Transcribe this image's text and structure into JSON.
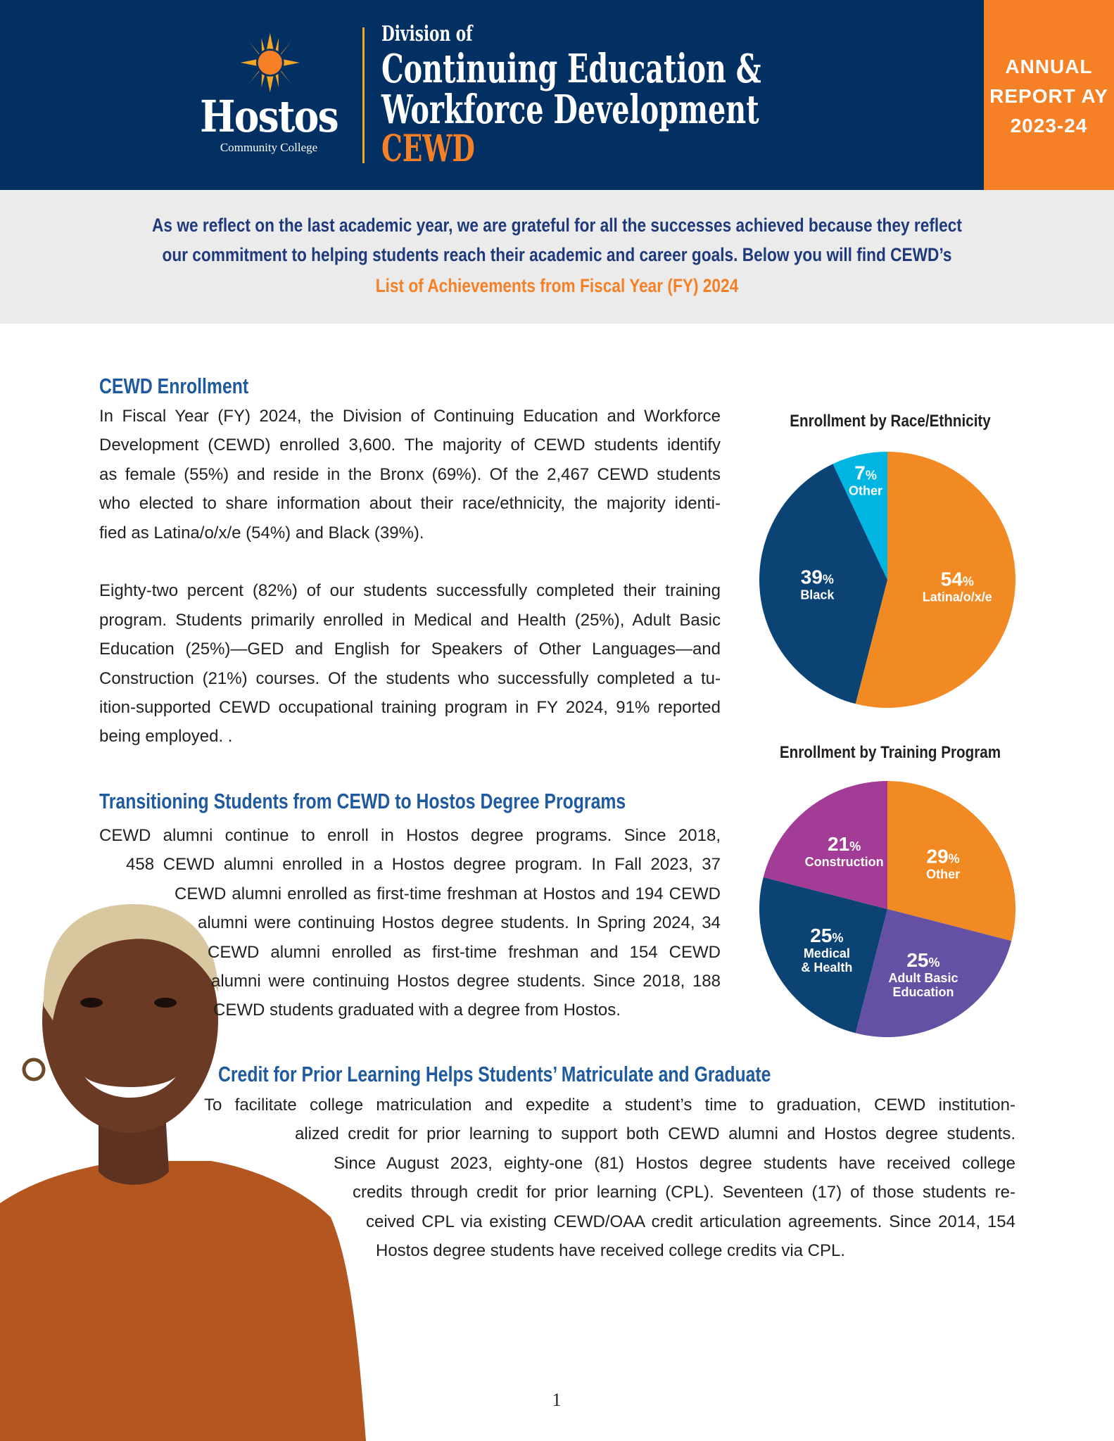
{
  "header": {
    "logo_word": "Hostos",
    "logo_sub": "Community College",
    "division_of": "Division of",
    "title_line1": "Continuing Education &",
    "title_line2": "Workforce Development",
    "acronym": "CEWD",
    "report": [
      "ANNUAL",
      "REPORT AY",
      "2023-24"
    ],
    "colors": {
      "navy": "#033063",
      "orange": "#f58025",
      "gold": "#f5a623"
    }
  },
  "intro": {
    "lines": [
      "As we reflect on the last academic year, we are grateful for all the successes achieved because they reflect",
      "our commitment to helping students reach their academic and career goals. Below you will find CEWD’s",
      "List of Achievements from Fiscal Year (FY) 2024"
    ]
  },
  "sections": [
    {
      "heading": "CEWD Enrollment",
      "lines": [
        "In Fiscal Year (FY) 2024, the Division of Continuing Education and Workforce",
        "Development (CEWD) enrolled 3,600. The majority of CEWD students identify",
        "as female (55%) and reside in the Bronx (69%). Of the 2,467 CEWD students",
        "who elected to share information about their race/ethnicity, the majority identi-",
        "fied as Latina/o/x/e (54%) and Black (39%).",
        "Eighty-two percent (82%) of our students successfully completed their training",
        "program. Students primarily enrolled in Medical and Health (25%), Adult Basic",
        "Education (25%)—GED and English for Speakers of Other Languages—and",
        "Construction (21%) courses. Of the students who successfully completed a tu-",
        "ition-supported CEWD occupational training program in FY 2024, 91% reported",
        "being employed. ."
      ]
    },
    {
      "heading": "Transitioning Students from CEWD to Hostos Degree Programs",
      "lines": [
        "CEWD alumni continue to enroll in Hostos degree programs. Since 2018,",
        "458 CEWD alumni enrolled in a Hostos degree program. In Fall 2023, 37",
        "CEWD alumni enrolled as first-time freshman at Hostos and 194 CEWD",
        "alumni were continuing Hostos degree students. In Spring 2024, 34",
        "CEWD alumni enrolled as first-time freshman and 154 CEWD",
        "alumni were continuing Hostos degree students. Since 2018, 188",
        "CEWD students graduated with a degree from Hostos."
      ]
    },
    {
      "heading": "Credit for Prior Learning Helps Students’ Matriculate and Graduate",
      "lines": [
        "To facilitate college matriculation and expedite a student’s time to graduation, CEWD institution-",
        "alized credit for prior learning to support both CEWD alumni and Hostos degree students.",
        "Since August 2023, eighty-one (81) Hostos degree students have received college",
        "credits through credit for prior learning (CPL).  Seventeen (17) of those students re-",
        "ceived CPL via existing CEWD/OAA credit articulation agreements. Since 2014, 154",
        "Hostos degree students have  received college credits via CPL."
      ]
    }
  ],
  "chart_data": [
    {
      "type": "pie",
      "title": "Enrollment by Race/Ethnicity",
      "categories": [
        "Latina/o/x/e",
        "Black",
        "Other"
      ],
      "values": [
        54,
        39,
        7
      ],
      "colors": [
        "#f28a24",
        "#0b4375",
        "#00b5e2"
      ]
    },
    {
      "type": "pie",
      "title": "Enrollment by Training Program",
      "categories": [
        "Other",
        "Adult Basic Education",
        "Medical & Health",
        "Construction"
      ],
      "values": [
        29,
        25,
        25,
        21
      ],
      "colors": [
        "#f28a24",
        "#6551a3",
        "#0b4375",
        "#a23c96"
      ]
    }
  ],
  "page_number": "1"
}
